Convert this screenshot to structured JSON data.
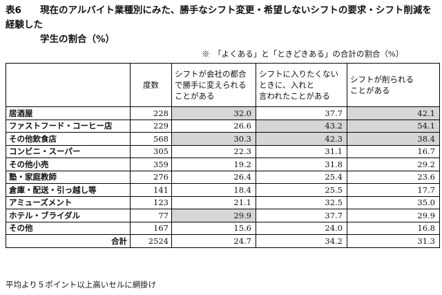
{
  "title": {
    "label": "表6",
    "line1": "現在のアルバイト業種別にみた、勝手なシフト変更・希望しないシフトの要求・シフト削減を経験した",
    "line2": "学生の割合（%）"
  },
  "note": "※　「よくある」と「ときどきある」の合計の割合（%）",
  "table": {
    "headers": {
      "count": "度数",
      "col1": [
        "シフトが会社の都合",
        "で勝手に変えられる",
        "ことがある"
      ],
      "col2": [
        "シフトに入りたくない",
        "ときに、入れと",
        "言われたことがある"
      ],
      "col3": [
        "シフトが削られる",
        "ことがある"
      ]
    },
    "rows": [
      {
        "name": "居酒屋",
        "n": "228",
        "v1": "32.0",
        "v2": "37.7",
        "v3": "42.1",
        "hl": [
          true,
          false,
          true
        ]
      },
      {
        "name": "ファストフード・コーヒー店",
        "n": "229",
        "v1": "26.6",
        "v2": "43.2",
        "v3": "54.1",
        "hl": [
          false,
          true,
          true
        ]
      },
      {
        "name": "その他飲食店",
        "n": "568",
        "v1": "30.3",
        "v2": "42.3",
        "v3": "38.4",
        "hl": [
          true,
          true,
          true
        ]
      },
      {
        "name": "コンビニ・スーパー",
        "n": "305",
        "v1": "22.3",
        "v2": "31.1",
        "v3": "16.7",
        "hl": [
          false,
          false,
          false
        ]
      },
      {
        "name": "その他小売",
        "n": "359",
        "v1": "19.2",
        "v2": "31.8",
        "v3": "29.2",
        "hl": [
          false,
          false,
          false
        ]
      },
      {
        "name": "塾・家庭教師",
        "n": "276",
        "v1": "26.4",
        "v2": "25.4",
        "v3": "23.6",
        "hl": [
          false,
          false,
          false
        ]
      },
      {
        "name": "倉庫・配送・引っ越し等",
        "n": "141",
        "v1": "18.4",
        "v2": "25.5",
        "v3": "17.7",
        "hl": [
          false,
          false,
          false
        ]
      },
      {
        "name": "アミューズメント",
        "n": "123",
        "v1": "21.1",
        "v2": "32.5",
        "v3": "35.0",
        "hl": [
          false,
          false,
          false
        ]
      },
      {
        "name": "ホテル・ブライダル",
        "n": "77",
        "v1": "29.9",
        "v2": "37.7",
        "v3": "29.9",
        "hl": [
          true,
          false,
          false
        ]
      },
      {
        "name": "その他",
        "n": "167",
        "v1": "15.6",
        "v2": "24.0",
        "v3": "16.8",
        "hl": [
          false,
          false,
          false
        ]
      }
    ],
    "total": {
      "label": "合計",
      "n": "2524",
      "v1": "24.7",
      "v2": "34.2",
      "v3": "31.3"
    }
  },
  "footnote": "平均より５ポイント以上高いセルに網掛け"
}
